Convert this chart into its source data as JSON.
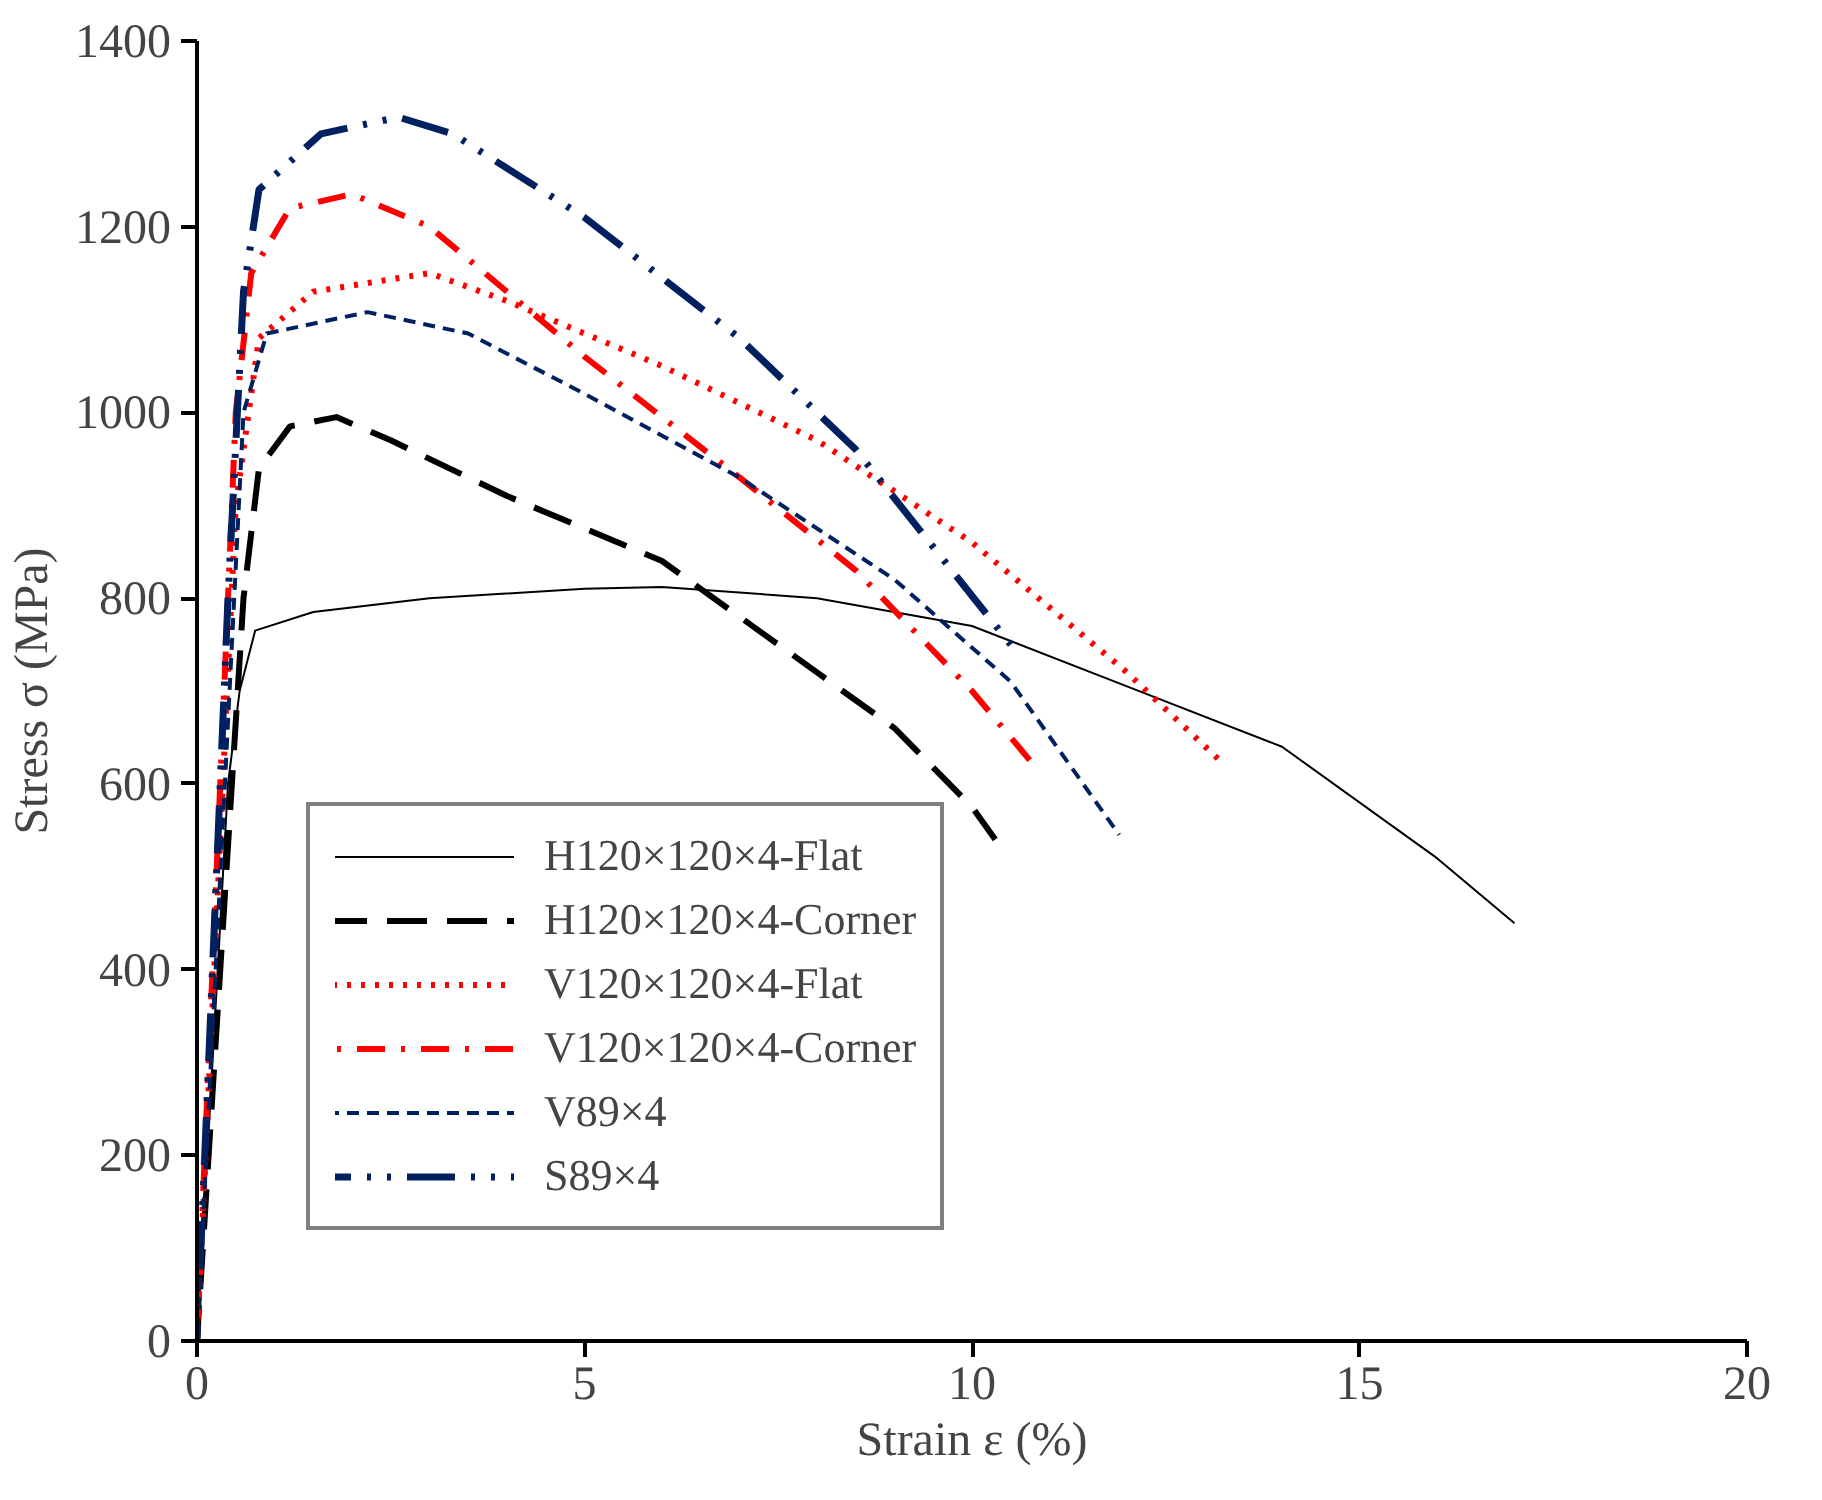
{
  "chart_data": {
    "type": "line",
    "xlabel": "Strain ε (%)",
    "ylabel": "Stress σ (MPa)",
    "xlim": [
      0,
      20
    ],
    "ylim": [
      0,
      1400
    ],
    "xticks": [
      0,
      5,
      10,
      15,
      20
    ],
    "yticks": [
      0,
      200,
      400,
      600,
      800,
      1000,
      1200,
      1400
    ],
    "grid": false,
    "legend": "bottom left",
    "marker": "none",
    "series": [
      {
        "name": "H120×120×4-Flat",
        "color": "#000000",
        "line_style": "solid",
        "x": [
          0,
          0.4,
          0.55,
          0.75,
          1.5,
          3,
          5,
          6,
          8,
          10,
          12,
          14,
          16,
          17
        ],
        "values": [
          0,
          600,
          700,
          765,
          785,
          800,
          810,
          812,
          800,
          770,
          705,
          640,
          520,
          450
        ]
      },
      {
        "name": "H120×120×4-Corner",
        "color": "#000000",
        "line_style": "long_dash",
        "x": [
          0,
          0.6,
          0.8,
          1.2,
          1.8,
          2.5,
          4,
          6,
          8,
          9,
          10,
          10.3
        ],
        "values": [
          0,
          800,
          940,
          985,
          995,
          970,
          910,
          840,
          720,
          660,
          575,
          540
        ]
      },
      {
        "name": "V120×120×4-Flat",
        "color": "#ff0000",
        "line_style": "dotted",
        "x": [
          0,
          0.5,
          0.8,
          1.5,
          3,
          4,
          6,
          8,
          10,
          12,
          13.2
        ],
        "values": [
          0,
          900,
          1080,
          1130,
          1150,
          1120,
          1050,
          970,
          860,
          720,
          625
        ]
      },
      {
        "name": "V120×120×4-Corner",
        "color": "#ff0000",
        "line_style": "dash_dot",
        "x": [
          0,
          0.5,
          0.7,
          1.2,
          2,
          3,
          5,
          7,
          8.5,
          10,
          10.8
        ],
        "values": [
          0,
          1000,
          1150,
          1220,
          1235,
          1200,
          1060,
          930,
          830,
          700,
          620
        ]
      },
      {
        "name": "V89×4",
        "color": "#002060",
        "line_style": "dashed",
        "x": [
          0,
          0.6,
          0.9,
          2.2,
          3.5,
          5,
          7,
          9,
          10.5,
          11.9
        ],
        "values": [
          0,
          1000,
          1085,
          1108,
          1085,
          1020,
          930,
          820,
          710,
          545
        ]
      },
      {
        "name": "S89×4",
        "color": "#002060",
        "line_style": "dash_dot_dot",
        "x": [
          0,
          0.4,
          0.6,
          0.8,
          1.6,
          2.6,
          3.3,
          5,
          7,
          8.5,
          10.5
        ],
        "values": [
          0,
          800,
          1130,
          1240,
          1300,
          1318,
          1300,
          1210,
          1080,
          960,
          750
        ]
      }
    ]
  }
}
